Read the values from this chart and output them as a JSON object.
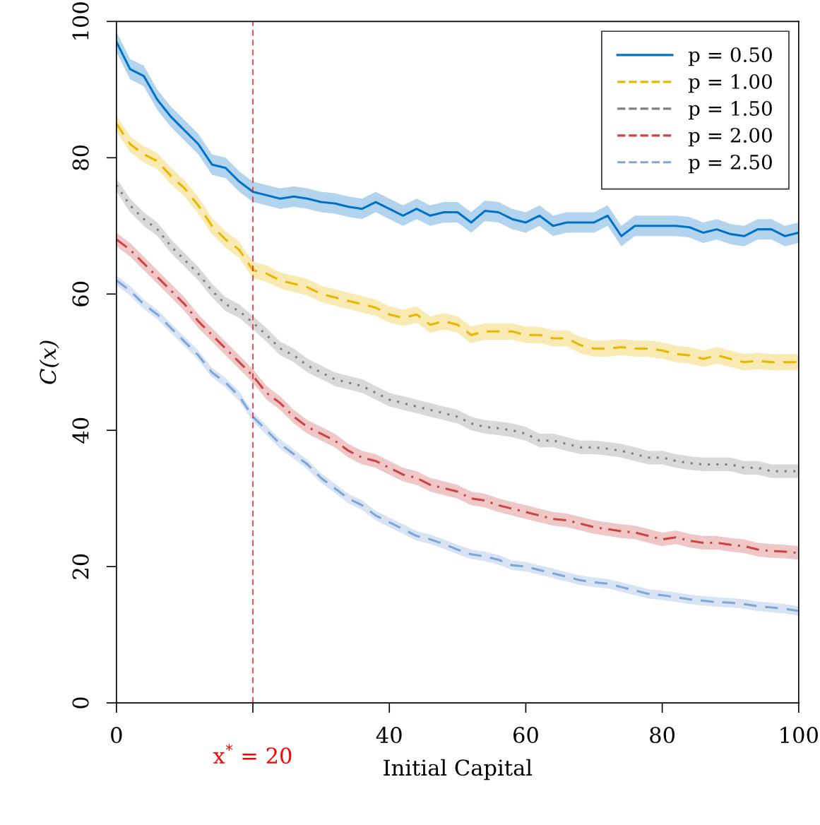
{
  "chart_data": {
    "type": "line",
    "xlabel": "Initial Capital",
    "ylabel": "C(x)",
    "x": [
      0,
      2,
      4,
      6,
      8,
      10,
      12,
      14,
      16,
      18,
      20,
      22,
      24,
      26,
      28,
      30,
      32,
      34,
      36,
      38,
      40,
      42,
      44,
      46,
      48,
      50,
      52,
      54,
      56,
      58,
      60,
      62,
      64,
      66,
      68,
      70,
      72,
      74,
      76,
      78,
      80,
      82,
      84,
      86,
      88,
      90,
      92,
      94,
      96,
      98,
      100
    ],
    "series": [
      {
        "name": "p = 0.50",
        "color": "#0072c6",
        "line_style": "solid",
        "values": [
          97,
          93,
          92,
          88.5,
          86,
          84,
          82,
          79,
          78.5,
          76.5,
          75,
          74.5,
          74,
          74.3,
          74,
          73.5,
          73.3,
          72.8,
          72.5,
          73.5,
          72.5,
          71.5,
          72.5,
          71.5,
          72,
          72,
          70.5,
          72.2,
          72,
          71,
          70.5,
          71.5,
          70,
          70.5,
          70.5,
          70.5,
          71.5,
          68.5,
          70,
          70,
          70,
          70,
          69.8,
          69,
          69.5,
          68.8,
          68.5,
          69.5,
          69.5,
          68.5,
          69
        ],
        "lower": [
          95.5,
          91.5,
          90.5,
          87,
          84.5,
          82.5,
          80.5,
          77.5,
          77,
          75,
          73.5,
          73,
          72.5,
          72.8,
          72.5,
          72,
          71.8,
          71.3,
          71,
          72,
          71,
          70,
          71,
          70,
          70.5,
          70.5,
          69,
          70.7,
          70.5,
          69.5,
          69,
          70,
          68.5,
          69,
          69,
          69,
          70,
          67,
          68.5,
          68.5,
          68.5,
          68.5,
          68.3,
          67.5,
          68,
          67.3,
          67,
          68,
          68,
          67,
          67.5
        ],
        "upper": [
          98.5,
          94.5,
          93.5,
          90,
          87.5,
          85.5,
          83.5,
          80.5,
          80,
          78,
          76.5,
          76,
          75.5,
          75.8,
          75.5,
          75,
          74.8,
          74.3,
          74,
          75,
          74,
          73,
          74,
          73,
          73.5,
          73.5,
          72,
          73.7,
          73.5,
          72.5,
          72,
          73,
          71.5,
          72,
          72,
          72,
          73,
          70,
          71.5,
          71.5,
          71.5,
          71.5,
          71.3,
          70.5,
          71,
          70.3,
          70,
          71,
          71,
          70,
          70.5
        ]
      },
      {
        "name": "p = 1.00",
        "color": "#e8b800",
        "line_style": "dashed",
        "values": [
          85,
          82,
          80.5,
          79.5,
          77.3,
          75.5,
          73,
          70,
          68,
          66.5,
          63.5,
          63,
          62,
          61.5,
          61,
          60,
          59.5,
          59,
          58.5,
          58,
          57,
          56.5,
          57,
          55.5,
          56,
          55.5,
          54,
          54.5,
          54.5,
          54.5,
          54,
          54,
          53.5,
          53.5,
          52.5,
          52,
          52,
          52.2,
          52,
          52,
          51.7,
          51.2,
          51,
          50.5,
          51,
          50.5,
          50,
          50.2,
          50,
          50,
          50
        ],
        "lower": [
          83.8,
          80.8,
          79.3,
          78.3,
          76.1,
          74.3,
          71.8,
          68.8,
          66.8,
          65.3,
          62.3,
          61.8,
          60.8,
          60.3,
          59.8,
          58.8,
          58.3,
          57.8,
          57.3,
          56.8,
          55.8,
          55.3,
          55.8,
          54.3,
          54.8,
          54.3,
          52.8,
          53.3,
          53.3,
          53.3,
          52.8,
          52.8,
          52.3,
          52.3,
          51.3,
          50.8,
          50.8,
          51,
          50.8,
          50.8,
          50.5,
          50,
          49.8,
          49.3,
          49.8,
          49.3,
          48.8,
          49,
          48.8,
          48.8,
          48.8
        ],
        "upper": [
          86.2,
          83.2,
          81.7,
          80.7,
          78.5,
          76.7,
          74.2,
          71.2,
          69.2,
          67.7,
          64.7,
          64.2,
          63.2,
          62.7,
          62.2,
          61.2,
          60.7,
          60.2,
          59.7,
          59.2,
          58.2,
          57.7,
          58.2,
          56.7,
          57.2,
          56.7,
          55.2,
          55.7,
          55.7,
          55.7,
          55.2,
          55.2,
          54.7,
          54.7,
          53.7,
          53.2,
          53.2,
          53.4,
          53.2,
          53.2,
          52.9,
          52.4,
          52.2,
          51.7,
          52.2,
          51.7,
          51.2,
          51.4,
          51.2,
          51.2,
          51.2
        ]
      },
      {
        "name": "p = 1.50",
        "color": "#808080",
        "line_style": "dotted",
        "values": [
          76,
          73,
          71,
          69.5,
          67,
          65,
          63,
          60.5,
          58.5,
          57.5,
          55.8,
          54,
          52,
          51,
          49.5,
          48.5,
          47.5,
          47,
          46.5,
          45.5,
          44.5,
          44,
          43.5,
          43,
          42.5,
          42,
          41,
          40.5,
          40.3,
          40,
          39.5,
          38.5,
          38.5,
          38,
          37.5,
          37.5,
          37.3,
          37,
          36.5,
          36,
          36,
          35.5,
          35.2,
          35,
          35,
          35,
          34.5,
          34.5,
          34,
          34,
          34
        ],
        "lower": [
          75,
          72,
          70,
          68.5,
          66,
          64,
          62,
          59.5,
          57.5,
          56.5,
          54.8,
          53,
          51,
          50,
          48.5,
          47.5,
          46.5,
          46,
          45.5,
          44.5,
          43.5,
          43,
          42.5,
          42,
          41.5,
          41,
          40,
          39.5,
          39.3,
          39,
          38.5,
          37.5,
          37.5,
          37,
          36.5,
          36.5,
          36.3,
          36,
          35.5,
          35,
          35,
          34.5,
          34.2,
          34,
          34,
          34,
          33.5,
          33.5,
          33,
          33,
          33
        ],
        "upper": [
          77,
          74,
          72,
          70.5,
          68,
          66,
          64,
          61.5,
          59.5,
          58.5,
          56.8,
          55,
          53,
          52,
          50.5,
          49.5,
          48.5,
          48,
          47.5,
          46.5,
          45.5,
          45,
          44.5,
          44,
          43.5,
          43,
          42,
          41.5,
          41.3,
          41,
          40.5,
          39.5,
          39.5,
          39,
          38.5,
          38.5,
          38.3,
          38,
          37.5,
          37,
          37,
          36.5,
          36.2,
          36,
          36,
          36,
          35.5,
          35.5,
          35,
          35,
          35
        ]
      },
      {
        "name": "p = 2.00",
        "color": "#cc4444",
        "line_style": "dashdot",
        "values": [
          68,
          66.5,
          64.5,
          62.5,
          60.5,
          58.5,
          56,
          54,
          52,
          50,
          48,
          45.5,
          44,
          42,
          40.5,
          39.5,
          38.5,
          37,
          36,
          35.5,
          34.5,
          33.5,
          33,
          32,
          31.5,
          31,
          30,
          29.7,
          29,
          28.5,
          28,
          27.5,
          27,
          26.8,
          26.3,
          25.8,
          25.5,
          25.2,
          25,
          24.5,
          24,
          24.3,
          23.8,
          23.5,
          23.5,
          23.2,
          23,
          22.5,
          22.3,
          22.2,
          22
        ],
        "lower": [
          67,
          65.5,
          63.5,
          61.5,
          59.5,
          57.5,
          55,
          53,
          51,
          49,
          47,
          44.5,
          43,
          41,
          39.5,
          38.5,
          37.5,
          36,
          35,
          34.5,
          33.5,
          32.5,
          32,
          31,
          30.5,
          30,
          29,
          28.7,
          28,
          27.5,
          27,
          26.5,
          26,
          25.8,
          25.3,
          24.8,
          24.5,
          24.2,
          24,
          23.5,
          23,
          23.3,
          22.8,
          22.5,
          22.5,
          22.2,
          22,
          21.5,
          21.3,
          21.2,
          21
        ],
        "upper": [
          69,
          67.5,
          65.5,
          63.5,
          61.5,
          59.5,
          57,
          55,
          53,
          51,
          49,
          46.5,
          45,
          43,
          41.5,
          40.5,
          39.5,
          38,
          37,
          36.5,
          35.5,
          34.5,
          34,
          33,
          32.5,
          32,
          31,
          30.7,
          30,
          29.5,
          29,
          28.5,
          28,
          27.8,
          27.3,
          26.8,
          26.5,
          26.2,
          26,
          25.5,
          25,
          25.3,
          24.8,
          24.5,
          24.5,
          24.2,
          24,
          23.5,
          23.3,
          23.2,
          23
        ]
      },
      {
        "name": "p = 2.50",
        "color": "#7da7d9",
        "line_style": "dashed",
        "values": [
          62,
          60.5,
          58.5,
          57,
          55,
          53,
          51,
          48.5,
          47,
          45,
          42,
          40,
          38,
          36.5,
          35,
          33,
          31.5,
          30,
          29,
          27.5,
          26.5,
          25.5,
          24.5,
          24,
          23.3,
          22.5,
          21.8,
          21.5,
          21,
          20.2,
          20,
          19.5,
          19,
          18.5,
          18,
          17.7,
          17.5,
          17,
          16.5,
          16,
          15.8,
          15.5,
          15.2,
          15,
          14.8,
          14.7,
          14.5,
          14.2,
          14,
          13.8,
          13.5
        ],
        "lower": [
          61.3,
          59.8,
          57.8,
          56.3,
          54.3,
          52.3,
          50.3,
          47.8,
          46.3,
          44.3,
          41.3,
          39.3,
          37.3,
          35.8,
          34.3,
          32.3,
          30.8,
          29.3,
          28.3,
          26.8,
          25.8,
          24.8,
          23.8,
          23.3,
          22.6,
          21.8,
          21.1,
          20.8,
          20.3,
          19.5,
          19.3,
          18.8,
          18.3,
          17.8,
          17.3,
          17,
          16.8,
          16.3,
          15.8,
          15.3,
          15.1,
          14.8,
          14.5,
          14.3,
          14.1,
          14,
          13.8,
          13.5,
          13.3,
          13.1,
          12.8
        ],
        "upper": [
          62.7,
          61.2,
          59.2,
          57.7,
          55.7,
          53.7,
          51.7,
          49.2,
          47.7,
          45.7,
          42.7,
          40.7,
          38.7,
          37.2,
          35.7,
          33.7,
          32.2,
          30.7,
          29.7,
          28.2,
          27.2,
          26.2,
          25.2,
          24.7,
          24,
          23.2,
          22.5,
          22.2,
          21.7,
          20.9,
          20.7,
          20.2,
          19.7,
          19.2,
          18.7,
          18.4,
          18.2,
          17.7,
          17.2,
          16.7,
          16.5,
          16.2,
          15.9,
          15.7,
          15.5,
          15.4,
          15.2,
          14.9,
          14.7,
          14.5,
          14.2
        ]
      }
    ],
    "xlim": [
      0,
      100
    ],
    "ylim": [
      0,
      100
    ],
    "xticks": [
      0,
      {
        "value": 20,
        "label": null
      },
      40,
      60,
      80,
      100
    ],
    "yticks": [
      0,
      20,
      40,
      60,
      80,
      100
    ],
    "ref_lines": [
      {
        "axis": "x",
        "value": 20,
        "label": "x$^{*}$ = 20",
        "color": "#ff0000",
        "line_style": "dashed"
      }
    ],
    "grid": false,
    "legend": "top right",
    "marker": "none"
  }
}
